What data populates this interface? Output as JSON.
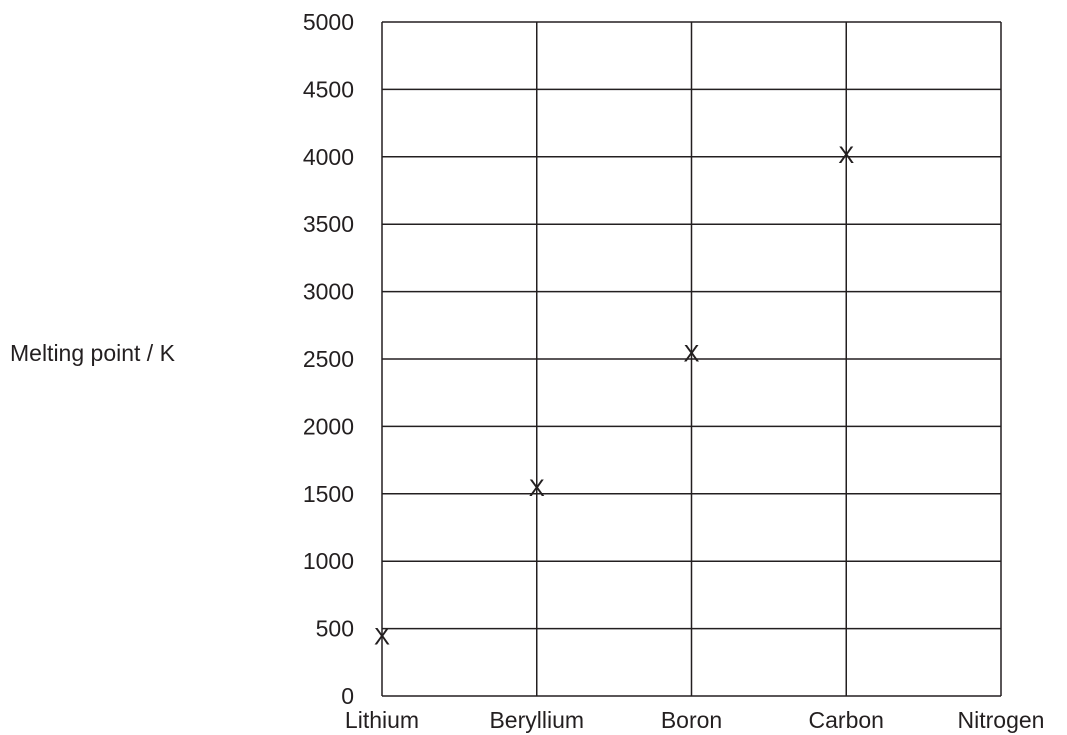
{
  "chart_data": {
    "type": "scatter",
    "title": "",
    "xlabel": "",
    "ylabel": "Melting point / K",
    "categories": [
      "Lithium",
      "Beryllium",
      "Boron",
      "Carbon",
      "Nitrogen"
    ],
    "y_ticks": [
      0,
      500,
      1000,
      1500,
      2000,
      2500,
      3000,
      3500,
      4000,
      4500,
      5000
    ],
    "ylim": [
      0,
      5000
    ],
    "grid": true,
    "marker": "X",
    "points": [
      {
        "category": "Lithium",
        "value": 450
      },
      {
        "category": "Beryllium",
        "value": 1550
      },
      {
        "category": "Boron",
        "value": 2550
      },
      {
        "category": "Carbon",
        "value": 4020
      }
    ],
    "colors": {
      "ink": "#231f20",
      "grid": "#231f20"
    }
  }
}
